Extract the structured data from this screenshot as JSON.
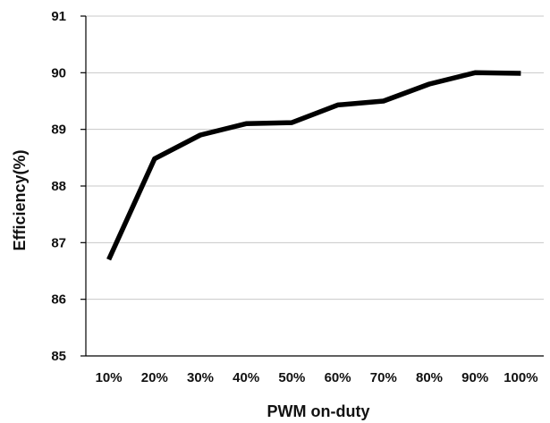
{
  "chart_data": {
    "type": "line",
    "categories": [
      "10%",
      "20%",
      "30%",
      "40%",
      "50%",
      "60%",
      "70%",
      "80%",
      "90%",
      "100%"
    ],
    "series": [
      {
        "values": [
          86.7,
          88.48,
          88.9,
          89.1,
          89.12,
          89.43,
          89.5,
          89.8,
          90.0,
          89.99
        ]
      }
    ],
    "title": "",
    "xlabel": "PWM on-duty",
    "ylabel": "Efficiency(%)",
    "ylim": [
      85,
      91
    ],
    "yticks": [
      "85",
      "86",
      "87",
      "88",
      "89",
      "90",
      "91"
    ],
    "grid": true,
    "legend": "none",
    "line_color": "#000000",
    "grid_color": "#c8c8c8"
  }
}
